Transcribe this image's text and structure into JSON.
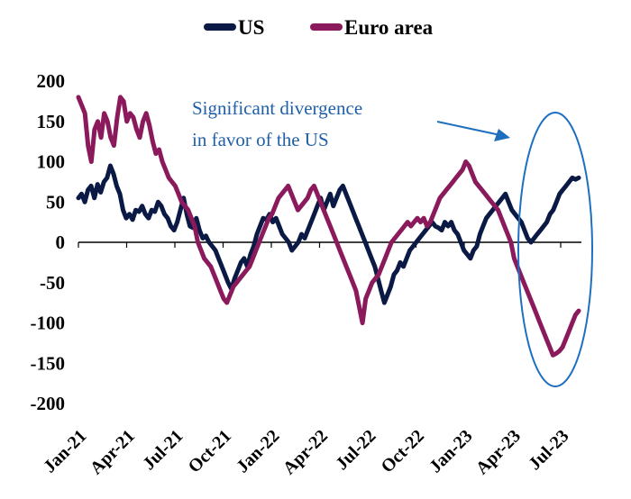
{
  "chart_data": {
    "type": "line",
    "title": "",
    "xlabel": "",
    "ylabel": "",
    "ylim": [
      -200,
      200
    ],
    "yticks": [
      "200",
      "150",
      "100",
      "50",
      "0",
      "-50",
      "-100",
      "-150",
      "-200"
    ],
    "ytick_values": [
      200,
      150,
      100,
      50,
      0,
      -50,
      -100,
      -150,
      -200
    ],
    "xticks": [
      "Jan-21",
      "Apr-21",
      "Jul-21",
      "Oct-21",
      "Jan-22",
      "Apr-22",
      "Jul-22",
      "Oct-22",
      "Jan-23",
      "Apr-23",
      "Jul-23"
    ],
    "legend_position": "top",
    "grid": false,
    "series": [
      {
        "name": "US",
        "color": "#0b1a45",
        "values": [
          55,
          60,
          50,
          65,
          70,
          55,
          72,
          62,
          75,
          80,
          95,
          85,
          70,
          60,
          40,
          30,
          35,
          28,
          40,
          38,
          45,
          35,
          30,
          40,
          38,
          50,
          45,
          35,
          30,
          20,
          15,
          25,
          40,
          55,
          35,
          20,
          18,
          30,
          15,
          5,
          8,
          0,
          -5,
          -10,
          -20,
          -30,
          -40,
          -50,
          -58,
          -45,
          -35,
          -25,
          -20,
          -30,
          -15,
          -5,
          10,
          20,
          30,
          28,
          35,
          25,
          30,
          20,
          10,
          5,
          0,
          -10,
          -5,
          0,
          10,
          5,
          15,
          25,
          35,
          45,
          55,
          40,
          50,
          60,
          45,
          55,
          65,
          70,
          60,
          50,
          40,
          30,
          20,
          10,
          0,
          -10,
          -20,
          -30,
          -45,
          -60,
          -75,
          -65,
          -55,
          -40,
          -35,
          -25,
          -30,
          -20,
          -10,
          -5,
          0,
          5,
          10,
          15,
          20,
          25,
          20,
          18,
          15,
          25,
          20,
          25,
          15,
          10,
          0,
          -10,
          -15,
          -20,
          -10,
          -5,
          10,
          20,
          30,
          35,
          40,
          45,
          50,
          55,
          60,
          50,
          40,
          35,
          30,
          25,
          15,
          5,
          0,
          5,
          10,
          15,
          20,
          25,
          35,
          40,
          50,
          60,
          65,
          70,
          75,
          80,
          78,
          80
        ]
      },
      {
        "name": "Euro area",
        "color": "#8a1a5c",
        "values": [
          180,
          170,
          160,
          120,
          100,
          140,
          150,
          130,
          160,
          150,
          130,
          120,
          155,
          180,
          175,
          150,
          160,
          155,
          140,
          130,
          150,
          160,
          145,
          125,
          110,
          115,
          100,
          90,
          80,
          75,
          70,
          60,
          50,
          45,
          40,
          30,
          20,
          0,
          -10,
          -20,
          -25,
          -30,
          -40,
          -50,
          -60,
          -70,
          -75,
          -65,
          -55,
          -50,
          -45,
          -40,
          -35,
          -30,
          -20,
          -10,
          0,
          10,
          20,
          30,
          35,
          45,
          55,
          60,
          65,
          70,
          60,
          50,
          40,
          45,
          50,
          55,
          65,
          70,
          60,
          50,
          40,
          30,
          20,
          10,
          0,
          -10,
          -20,
          -30,
          -40,
          -50,
          -60,
          -80,
          -100,
          -70,
          -60,
          -50,
          -45,
          -40,
          -30,
          -20,
          -10,
          0,
          5,
          10,
          15,
          20,
          25,
          20,
          25,
          30,
          25,
          30,
          20,
          25,
          35,
          45,
          55,
          60,
          65,
          70,
          75,
          80,
          85,
          90,
          100,
          95,
          85,
          75,
          70,
          65,
          60,
          55,
          50,
          45,
          40,
          30,
          20,
          10,
          0,
          -20,
          -30,
          -40,
          -50,
          -60,
          -70,
          -80,
          -90,
          -100,
          -110,
          -120,
          -130,
          -140,
          -138,
          -135,
          -130,
          -120,
          -110,
          -100,
          -90,
          -85
        ]
      }
    ],
    "annotation": {
      "line1": "Significant  divergence",
      "line2": "in favor of the US"
    }
  }
}
